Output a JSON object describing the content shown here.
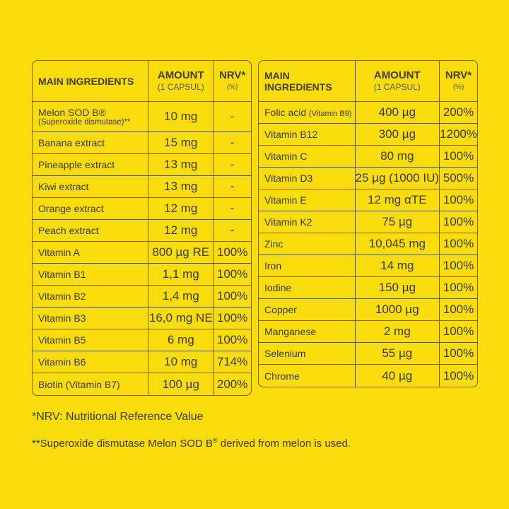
{
  "headers": {
    "name": "MAIN INGREDIENTS",
    "amount": "AMOUNT",
    "amount_sub": "(1 CAPSUL)",
    "nrv": "NRV*",
    "nrv_sub": "(%)"
  },
  "left_rows": [
    {
      "name": "Melon SOD B®",
      "name2": "(Superoxide dismutase)**",
      "amount": "10 mg",
      "nrv": "-"
    },
    {
      "name": "Banana extract",
      "amount": "15 mg",
      "nrv": "-"
    },
    {
      "name": "Pineapple extract",
      "amount": "13 mg",
      "nrv": "-"
    },
    {
      "name": "Kiwi extract",
      "amount": "13 mg",
      "nrv": "-"
    },
    {
      "name": "Orange extract",
      "amount": "12 mg",
      "nrv": "-"
    },
    {
      "name": "Peach extract",
      "amount": "12 mg",
      "nrv": "-"
    },
    {
      "name": "Vitamin A",
      "amount": "800 µg RE",
      "nrv": "100%"
    },
    {
      "name": "Vitamin B1",
      "amount": "1,1 mg",
      "nrv": "100%"
    },
    {
      "name": "Vitamin B2",
      "amount": "1,4 mg",
      "nrv": "100%"
    },
    {
      "name": "Vitamin B3",
      "amount": "16,0 mg NE",
      "nrv": "100%"
    },
    {
      "name": "Vitamin B5",
      "amount": "6 mg",
      "nrv": "100%"
    },
    {
      "name": "Vitamin B6",
      "amount": "10 mg",
      "nrv": "714%"
    },
    {
      "name": "Biotin (Vitamin B7)",
      "amount": "100 µg",
      "nrv": "200%"
    }
  ],
  "right_rows": [
    {
      "name": "Folic acid",
      "name_small": "(Vitamin B9)",
      "amount": "400 µg",
      "nrv": "200%"
    },
    {
      "name": "Vitamin B12",
      "amount": "300 µg",
      "nrv": "1200%"
    },
    {
      "name": "Vitamin C",
      "amount": "80 mg",
      "nrv": "100%"
    },
    {
      "name": "Vitamin D3",
      "amount": "25 µg (1000 IU)",
      "nrv": "500%"
    },
    {
      "name": "Vitamin E",
      "amount": "12 mg αTE",
      "nrv": "100%"
    },
    {
      "name": "Vitamin K2",
      "amount": "75 µg",
      "nrv": "100%"
    },
    {
      "name": "Zinc",
      "amount": "10,045 mg",
      "nrv": "100%"
    },
    {
      "name": "Iron",
      "amount": "14 mg",
      "nrv": "100%"
    },
    {
      "name": "Iodine",
      "amount": "150 µg",
      "nrv": "100%"
    },
    {
      "name": "Copper",
      "amount": "1000 µg",
      "nrv": "100%"
    },
    {
      "name": "Manganese",
      "amount": "2 mg",
      "nrv": "100%"
    },
    {
      "name": "Selenium",
      "amount": "55 µg",
      "nrv": "100%"
    },
    {
      "name": "Chrome",
      "amount": "40 µg",
      "nrv": "100%"
    }
  ],
  "footnotes": {
    "nrv": "*NRV: Nutritional Reference Value",
    "sod_pre": "**Superoxide dismutase Melon SOD B",
    "sod_sup": "®",
    "sod_post": " derived from melon is used."
  },
  "colors": {
    "background": "#F8DC0C",
    "border": "#5a5a3a",
    "text": "#3a3a2a"
  }
}
